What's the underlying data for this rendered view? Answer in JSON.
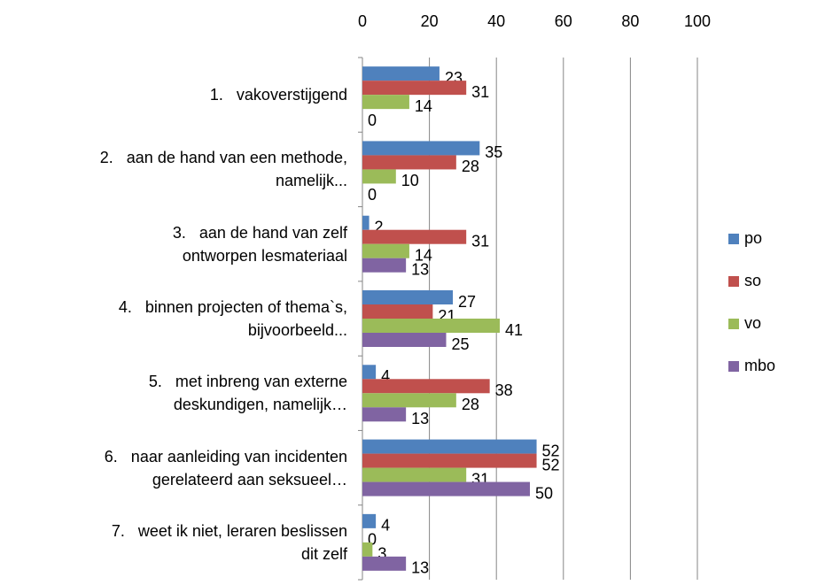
{
  "chart_data": {
    "type": "bar",
    "orientation": "horizontal",
    "categories": [
      "1.   vakoverstijgend",
      "2.   aan de hand van een methode,\nnamelijk...",
      "3.   aan de hand van zelf\nontworpen lesmateriaal",
      "4.   binnen projecten of thema`s,\nbijvoorbeeld...",
      "5.   met inbreng van externe\ndeskundigen, namelijk…",
      "6.   naar aanleiding van incidenten\ngerelateerd aan seksueel…",
      "7.   weet ik niet, leraren beslissen\ndit zelf"
    ],
    "series": [
      {
        "name": "po",
        "color": "#4f81bd",
        "values": [
          23,
          35,
          2,
          27,
          4,
          52,
          4
        ]
      },
      {
        "name": "so",
        "color": "#c0504d",
        "values": [
          31,
          28,
          31,
          21,
          38,
          52,
          0
        ]
      },
      {
        "name": "vo",
        "color": "#9bbb59",
        "values": [
          14,
          10,
          14,
          41,
          28,
          31,
          3
        ]
      },
      {
        "name": "mbo",
        "color": "#8064a2",
        "values": [
          0,
          0,
          13,
          25,
          13,
          50,
          13
        ]
      }
    ],
    "xlim": [
      0,
      100
    ],
    "xticks": [
      0,
      20,
      40,
      60,
      80,
      100
    ],
    "grid": true,
    "legend": "right"
  }
}
